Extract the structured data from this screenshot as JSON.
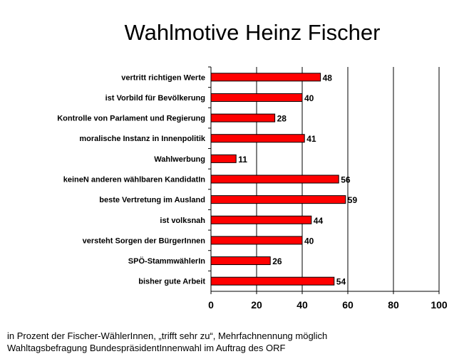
{
  "chart_data": {
    "type": "bar",
    "orientation": "horizontal",
    "title": "Wahlmotive Heinz Fischer",
    "categories": [
      "vertritt richtigen Werte",
      "ist Vorbild für Bevölkerung",
      "Kontrolle von Parlament und Regierung",
      "moralische Instanz in Innenpolitik",
      "Wahlwerbung",
      "keineN anderen wählbaren KandidatIn",
      "beste Vertretung im Ausland",
      "ist volksnah",
      "versteht Sorgen der BürgerInnen",
      "SPÖ-StammwählerIn",
      "bisher gute Arbeit"
    ],
    "values": [
      48,
      40,
      28,
      41,
      11,
      56,
      59,
      44,
      40,
      26,
      54
    ],
    "xlim": [
      0,
      100
    ],
    "xticks": [
      0,
      20,
      40,
      60,
      80,
      100
    ],
    "xlabel": "",
    "ylabel": "",
    "bar_color": "#ff0000",
    "grid": "vertical gridlines at ticks",
    "legend": "none"
  },
  "footnotes": [
    "in Prozent der Fischer-WählerInnen, „trifft sehr zu“, Mehrfachnennung möglich",
    "Wahltagsbefragung BundespräsidentInnenwahl im Auftrag des ORF"
  ]
}
